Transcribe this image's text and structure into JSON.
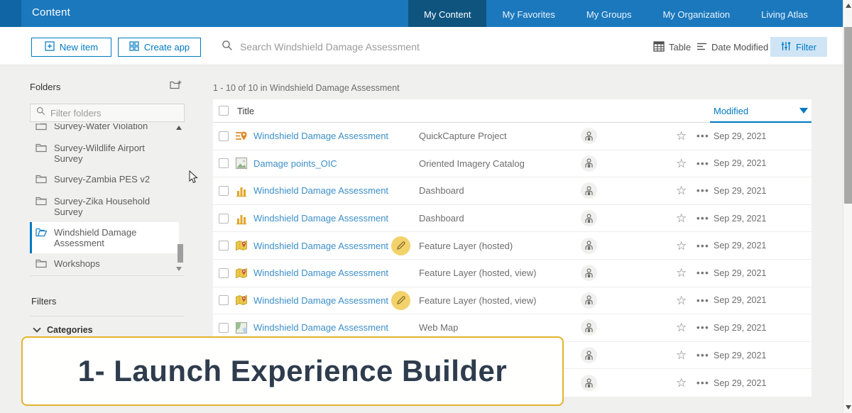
{
  "topbar": {
    "title": "Content",
    "tabs": [
      {
        "label": "My Content",
        "active": true
      },
      {
        "label": "My Favorites",
        "active": false
      },
      {
        "label": "My Groups",
        "active": false
      },
      {
        "label": "My Organization",
        "active": false
      },
      {
        "label": "Living Atlas",
        "active": false
      }
    ]
  },
  "toolbar": {
    "new_item_label": "New item",
    "create_app_label": "Create app",
    "search_placeholder": "Search Windshield Damage Assessment",
    "table_label": "Table",
    "date_modified_label": "Date Modified",
    "filter_label": "Filter"
  },
  "sidebar": {
    "folders_title": "Folders",
    "new_folder_icon": "new-folder-icon",
    "filter_placeholder": "Filter folders",
    "folders": [
      {
        "label": "Survey-Water Violation",
        "selected": false,
        "clipped": true
      },
      {
        "label": "Survey-Wildlife Airport Survey",
        "selected": false
      },
      {
        "label": "Survey-Zambia PES v2",
        "selected": false
      },
      {
        "label": "Survey-Zika Household Survey",
        "selected": false
      },
      {
        "label": "Windshield Damage Assessment",
        "selected": true
      },
      {
        "label": "Workshops",
        "selected": false
      }
    ],
    "filters_title": "Filters",
    "categories_label": "Categories"
  },
  "content": {
    "result_summary": "1 - 10 of 10 in Windshield Damage Assessment",
    "table": {
      "title_header": "Title",
      "modified_header": "Modified",
      "rows": [
        {
          "title": "Windshield Damage Assessment",
          "icon": "quickcapture-icon",
          "type": "QuickCapture Project",
          "pencil": false,
          "shared_icon": "person-icon",
          "date": "Sep 29, 2021"
        },
        {
          "title": "Damage points_OIC",
          "icon": "oriented-imagery-icon",
          "type": "Oriented Imagery Catalog",
          "pencil": false,
          "shared_icon": "person-icon",
          "date": "Sep 29, 2021"
        },
        {
          "title": "Windshield Damage Assessment",
          "icon": "dashboard-icon",
          "type": "Dashboard",
          "pencil": false,
          "shared_icon": "person-icon",
          "date": "Sep 29, 2021"
        },
        {
          "title": "Windshield Damage Assessment",
          "icon": "dashboard-icon",
          "type": "Dashboard",
          "pencil": false,
          "shared_icon": "person-icon",
          "date": "Sep 29, 2021"
        },
        {
          "title": "Windshield Damage Assessment",
          "icon": "feature-layer-icon",
          "type": "Feature Layer (hosted)",
          "pencil": true,
          "shared_icon": "person-icon",
          "date": "Sep 29, 2021"
        },
        {
          "title": "Windshield Damage Assessment",
          "icon": "feature-layer-icon",
          "type": "Feature Layer (hosted, view)",
          "pencil": false,
          "shared_icon": "person-icon",
          "date": "Sep 29, 2021"
        },
        {
          "title": "Windshield Damage Assessment",
          "icon": "feature-layer-icon",
          "type": "Feature Layer (hosted, view)",
          "pencil": true,
          "shared_icon": "person-icon",
          "date": "Sep 29, 2021"
        },
        {
          "title": "Windshield Damage Assessment",
          "icon": "web-map-icon",
          "type": "Web Map",
          "pencil": false,
          "shared_icon": "person-icon",
          "date": "Sep 29, 2021"
        },
        {
          "title": "",
          "icon": null,
          "type": "",
          "pencil": false,
          "shared_icon": "person-icon",
          "date": "Sep 29, 2021"
        },
        {
          "title": "",
          "icon": null,
          "type": "",
          "pencil": false,
          "shared_icon": "person-icon",
          "date": "Sep 29, 2021"
        }
      ]
    }
  },
  "caption": {
    "text": "1- Launch Experience Builder"
  },
  "colors": {
    "topbar": "#1b78bd",
    "topbar_active_tab": "#0e547f",
    "accent": "#0079c1",
    "link": "#3c8fc9",
    "filter_button_bg": "#cfe5f6",
    "caption_border": "#e2b42d",
    "caption_text": "#2e3c4d",
    "pencil_badge_bg": "#f2d26a"
  }
}
